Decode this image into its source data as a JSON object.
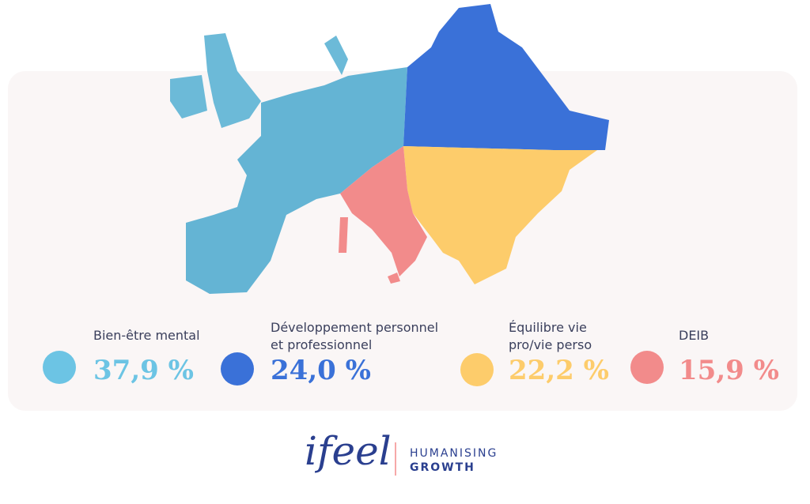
{
  "stats": [
    {
      "label": [
        "Bien-être mental"
      ],
      "value": "37,9 %"
    },
    {
      "label": [
        "Développement personnel",
        "et professionnel"
      ],
      "value": "24,0 %"
    },
    {
      "label": [
        "Équilibre vie",
        "pro/vie perso"
      ],
      "value": "22,2 %"
    },
    {
      "label": [
        "DEIB"
      ],
      "value": "15,9 %"
    }
  ],
  "logo": {
    "brand": "ifeel",
    "tagline": [
      "HUMANISING",
      "GROWTH"
    ]
  }
}
